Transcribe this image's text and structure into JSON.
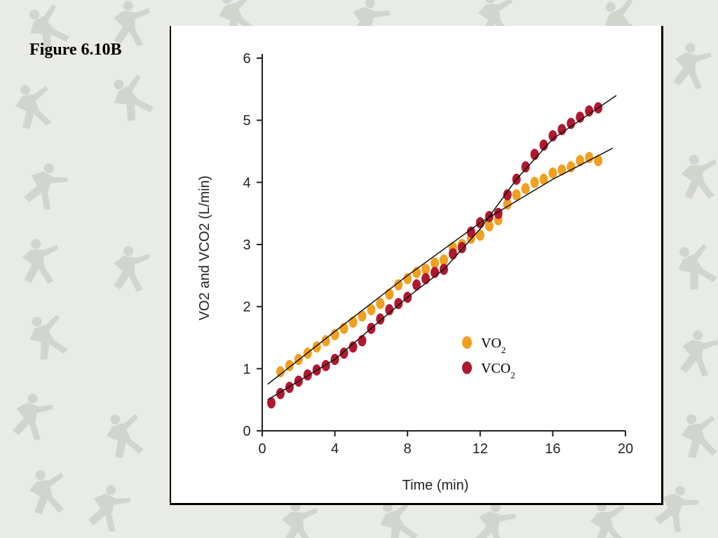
{
  "slide": {
    "title": "Figure 6.10B"
  },
  "colors": {
    "background": "#e9ece6",
    "watermark": "#c9cec6",
    "vo2": "#f0a020",
    "vco2": "#b01830",
    "fit_line": "#111111"
  },
  "chart_data": {
    "type": "scatter",
    "xlabel": "Time (min)",
    "ylabel": "VO2 and VCO2 (L/min)",
    "xlim": [
      0,
      20
    ],
    "ylim": [
      0,
      6
    ],
    "xticks": [
      "0",
      "4",
      "8",
      "12",
      "16",
      "20"
    ],
    "yticks": [
      "0",
      "1",
      "2",
      "3",
      "4",
      "5",
      "6"
    ],
    "grid": false,
    "legend": "lower-right",
    "series": [
      {
        "name": "VO2",
        "name_main": "VO",
        "name_sub": "2",
        "color": "#f0a020",
        "x": [
          1.0,
          1.5,
          2.0,
          2.5,
          3.0,
          3.5,
          4.0,
          4.5,
          5.0,
          5.5,
          6.0,
          6.5,
          7.0,
          7.5,
          8.0,
          8.5,
          9.0,
          9.5,
          10.0,
          10.5,
          11.0,
          11.5,
          12.0,
          12.5,
          13.0,
          13.5,
          14.0,
          14.5,
          15.0,
          15.5,
          16.0,
          16.5,
          17.0,
          17.5,
          18.0,
          18.5
        ],
        "y": [
          0.95,
          1.05,
          1.15,
          1.25,
          1.35,
          1.45,
          1.55,
          1.65,
          1.75,
          1.85,
          1.95,
          2.05,
          2.2,
          2.35,
          2.45,
          2.55,
          2.6,
          2.7,
          2.75,
          2.95,
          3.0,
          3.1,
          3.15,
          3.3,
          3.4,
          3.65,
          3.8,
          3.9,
          4.0,
          4.05,
          4.15,
          4.2,
          4.25,
          4.35,
          4.4,
          4.35
        ]
      },
      {
        "name": "VCO2",
        "name_main": "VCO",
        "name_sub": "2",
        "color": "#b01830",
        "x": [
          0.5,
          1.0,
          1.5,
          2.0,
          2.5,
          3.0,
          3.5,
          4.0,
          4.5,
          5.0,
          5.5,
          6.0,
          6.5,
          7.0,
          7.5,
          8.0,
          8.5,
          9.0,
          9.5,
          10.0,
          10.5,
          11.0,
          11.5,
          12.0,
          12.5,
          13.0,
          13.5,
          14.0,
          14.5,
          15.0,
          15.5,
          16.0,
          16.5,
          17.0,
          17.5,
          18.0,
          18.5
        ],
        "y": [
          0.45,
          0.6,
          0.7,
          0.8,
          0.9,
          0.98,
          1.05,
          1.15,
          1.25,
          1.35,
          1.45,
          1.65,
          1.8,
          1.95,
          2.05,
          2.15,
          2.35,
          2.45,
          2.55,
          2.6,
          2.85,
          2.95,
          3.2,
          3.35,
          3.45,
          3.5,
          3.8,
          4.05,
          4.25,
          4.45,
          4.6,
          4.75,
          4.85,
          4.95,
          5.05,
          5.15,
          5.2
        ]
      }
    ],
    "fit_lines": [
      {
        "series": "VO2",
        "x": [
          0.3,
          4,
          8,
          12,
          16,
          19.3
        ],
        "y": [
          0.75,
          1.6,
          2.5,
          3.35,
          4.05,
          4.55
        ]
      },
      {
        "series": "VCO2",
        "x": [
          0.3,
          4,
          8,
          10,
          12,
          14,
          16,
          19.5
        ],
        "y": [
          0.5,
          1.15,
          2.15,
          2.6,
          3.25,
          4.05,
          4.7,
          5.4
        ]
      }
    ]
  }
}
